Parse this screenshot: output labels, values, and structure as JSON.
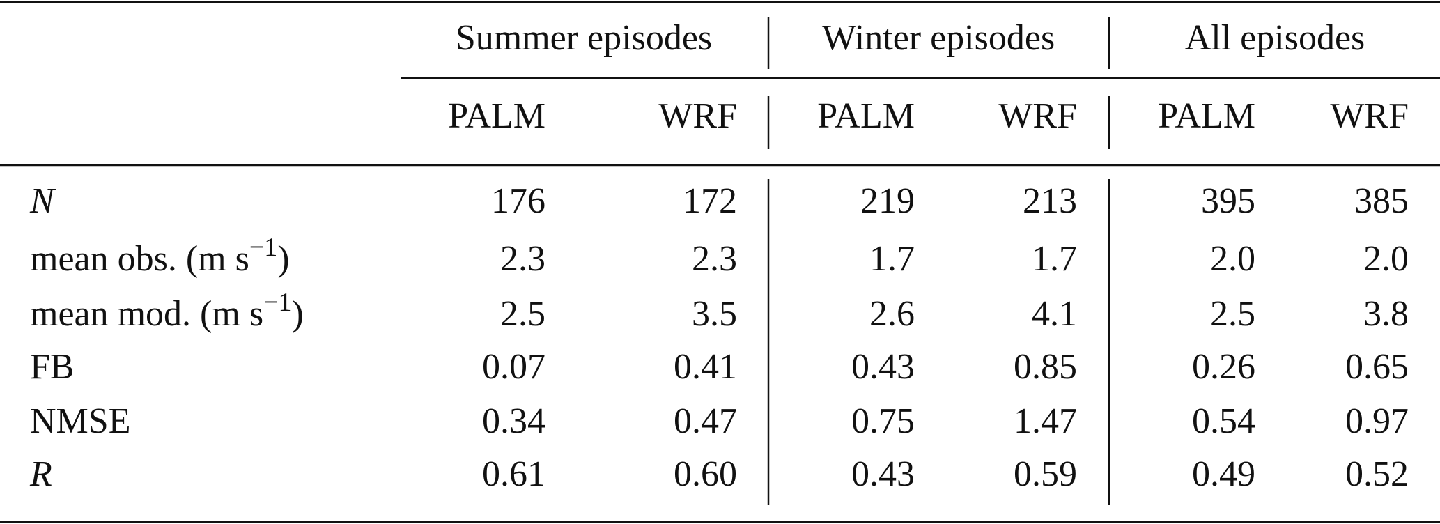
{
  "table": {
    "groups": [
      "Summer episodes",
      "Winter episodes",
      "All episodes"
    ],
    "subheaders": [
      "PALM",
      "WRF",
      "PALM",
      "WRF",
      "PALM",
      "WRF"
    ],
    "rows": [
      {
        "label": "N",
        "italic": true,
        "cells": [
          "176",
          "172",
          "219",
          "213",
          "395",
          "385"
        ]
      },
      {
        "label": "mean obs. (m s",
        "sup": "−1",
        "close": ")",
        "cells": [
          "2.3",
          "2.3",
          "1.7",
          "1.7",
          "2.0",
          "2.0"
        ]
      },
      {
        "label": "mean mod. (m s",
        "sup": "−1",
        "close": ")",
        "cells": [
          "2.5",
          "3.5",
          "2.6",
          "4.1",
          "2.5",
          "3.8"
        ]
      },
      {
        "label": "FB",
        "cells": [
          "0.07",
          "0.41",
          "0.43",
          "0.85",
          "0.26",
          "0.65"
        ]
      },
      {
        "label": "NMSE",
        "cells": [
          "0.34",
          "0.47",
          "0.75",
          "1.47",
          "0.54",
          "0.97"
        ]
      },
      {
        "label": "R",
        "italic": true,
        "cells": [
          "0.61",
          "0.60",
          "0.43",
          "0.59",
          "0.49",
          "0.52"
        ]
      }
    ]
  }
}
